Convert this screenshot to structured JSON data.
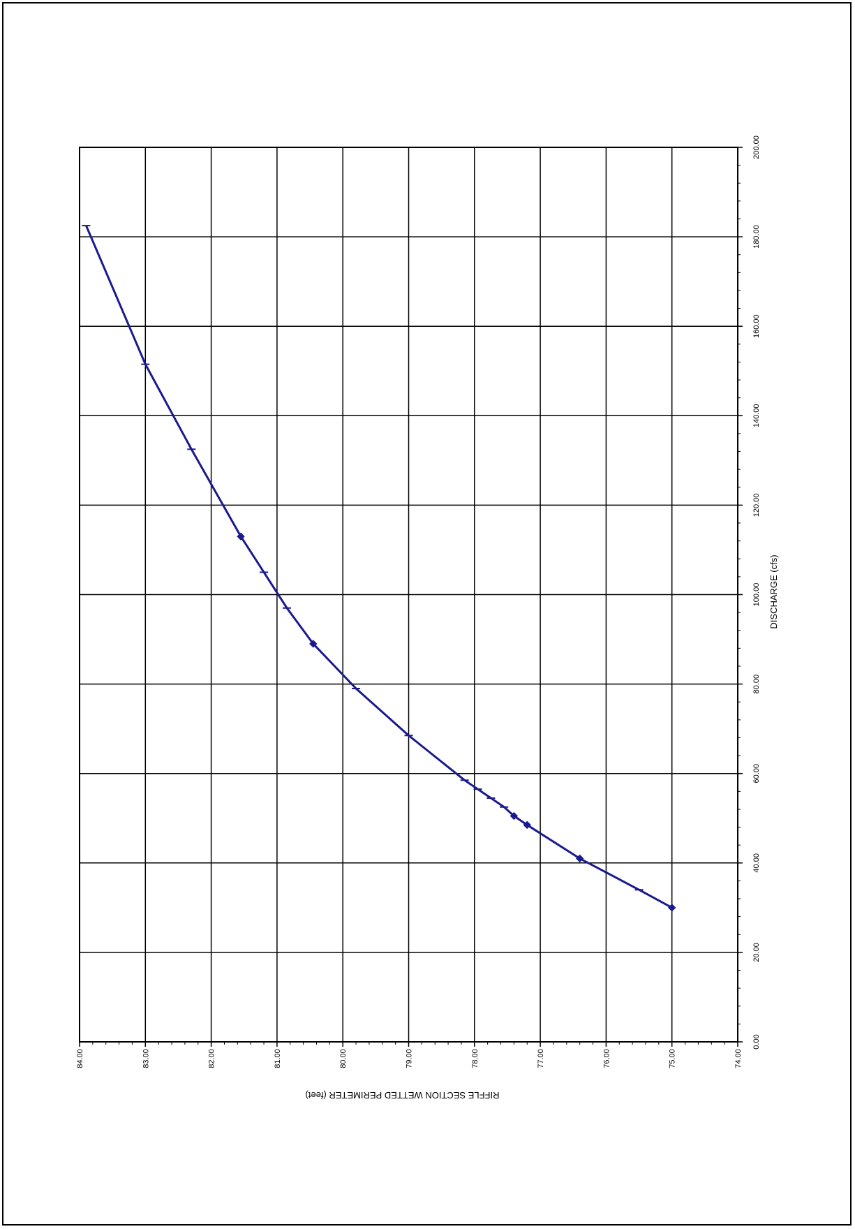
{
  "chart_data": {
    "type": "line",
    "title": "",
    "xlabel": "DISCHARGE  (cfs)",
    "ylabel": "RIFFLE SECTION WETTED PERIMETER  (feet)",
    "xlim": [
      0,
      200
    ],
    "ylim": [
      74,
      84
    ],
    "x_ticks": [
      "0.00",
      "20.00",
      "40.00",
      "60.00",
      "80.00",
      "100.00",
      "120.00",
      "140.00",
      "160.00",
      "180.00",
      "200.00"
    ],
    "y_ticks": [
      "74.00",
      "75.00",
      "76.00",
      "77.00",
      "78.00",
      "79.00",
      "80.00",
      "81.00",
      "82.00",
      "83.00",
      "84.00"
    ],
    "grid": true,
    "orientation": "rotated 90 degrees clockwise on the page",
    "colors": {
      "series": "#1a1a8c",
      "grid": "#000000"
    },
    "series": [
      {
        "x": [
          30.0,
          34.0,
          41.0,
          48.5,
          50.5,
          52.5,
          54.5,
          56.5,
          58.5,
          68.5,
          79.0,
          89.0,
          97.0,
          105.0,
          113.0,
          132.5,
          151.5,
          182.5
        ],
        "y": [
          75.0,
          75.5,
          76.4,
          77.2,
          77.4,
          77.55,
          77.75,
          77.95,
          78.15,
          79.0,
          79.8,
          80.45,
          80.85,
          81.2,
          81.55,
          82.3,
          83.0,
          83.9
        ],
        "markers": [
          "diamond",
          "dash",
          "diamond",
          "diamond",
          "diamond",
          "dash",
          "dash",
          "dash",
          "dash",
          "dash",
          "dash",
          "diamond",
          "dash",
          "dash",
          "diamond",
          "dash",
          "dash",
          "dash"
        ]
      }
    ]
  }
}
